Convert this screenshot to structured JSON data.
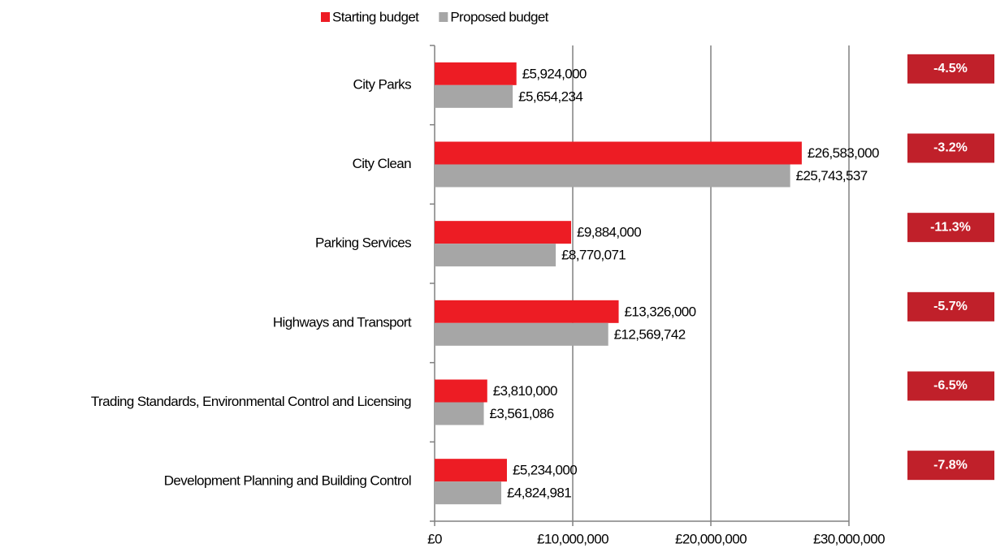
{
  "chart_data": {
    "type": "hbar",
    "categories": [
      "City Parks",
      "City Clean",
      "Parking Services",
      "Highways and Transport",
      "Trading Standards, Environmental Control and Licensing",
      "Development Planning and Building Control"
    ],
    "series": [
      {
        "name": "Starting budget",
        "color": "#ed1c24",
        "values": [
          5924000,
          26583000,
          9884000,
          13326000,
          3810000,
          5234000
        ],
        "value_labels": [
          "£5,924,000",
          "£26,583,000",
          "£9,884,000",
          "£13,326,000",
          "£3,810,000",
          "£5,234,000"
        ]
      },
      {
        "name": "Proposed budget",
        "color": "#a6a6a6",
        "values": [
          5654234,
          25743537,
          8770071,
          12569742,
          3561086,
          4824981
        ],
        "value_labels": [
          "£5,654,234",
          "£25,743,537",
          "£8,770,071",
          "£12,569,742",
          "£3,561,086",
          "£4,824,981"
        ]
      }
    ],
    "annotations": [
      "-4.5%",
      "-3.2%",
      "-11.3%",
      "-5.7%",
      "-6.5%",
      "-7.8%"
    ],
    "annotation_color": "#c0202a",
    "xlim": [
      0,
      30000000
    ],
    "xticks": [
      {
        "value": 0,
        "label": "£0"
      },
      {
        "value": 10000000,
        "label": "£10,000,000"
      },
      {
        "value": 20000000,
        "label": "£20,000,000"
      },
      {
        "value": 30000000,
        "label": "£30,000,000"
      }
    ],
    "grid": true,
    "legend": "top"
  }
}
